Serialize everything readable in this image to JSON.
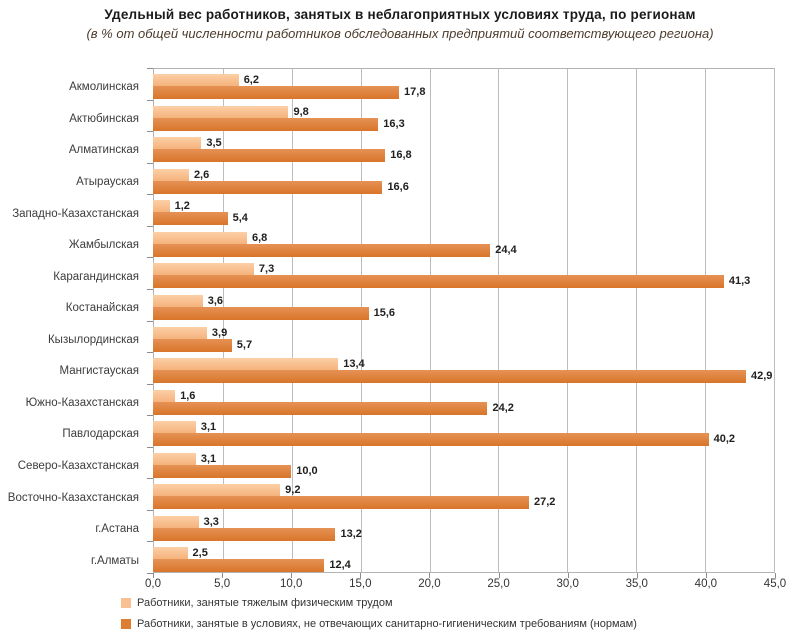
{
  "title": "Удельный вес работников, занятых в неблагоприятных условиях труда, по регионам",
  "subtitle": "(в % от общей численности работников обследованных предприятий соответствующего региона)",
  "colors": {
    "series_light": "#FBC091",
    "series_light_gradient_top": "#FCCFA6",
    "series_light_gradient_bottom": "#F5B27C",
    "series_dark": "#DD7E32",
    "series_dark_gradient_top": "#E69255",
    "series_dark_gradient_bottom": "#D9752A",
    "gridline": "#BDBDBD",
    "axis": "#8C8C8C",
    "value_label": "#21201E",
    "subtitle_text": "#4C3B2C"
  },
  "chart_data": {
    "type": "bar",
    "orientation": "horizontal",
    "categories": [
      "Акмолинская",
      "Актюбинская",
      "Алматинская",
      "Атырауская",
      "Западно-Казахстанская",
      "Жамбылская",
      "Карагандинская",
      "Костанайская",
      "Кызылординская",
      "Мангистауская",
      "Южно-Казахстанская",
      "Павлодарская",
      "Северо-Казахстанская",
      "Восточно-Казахстанская",
      "г.Астана",
      "г.Алматы"
    ],
    "series": [
      {
        "name": "Работники, занятые тяжелым физическим трудом",
        "color": "#FBC091",
        "values": [
          6.2,
          9.8,
          3.5,
          2.6,
          1.2,
          6.8,
          7.3,
          3.6,
          3.9,
          13.4,
          1.6,
          3.1,
          3.1,
          9.2,
          3.3,
          2.5
        ]
      },
      {
        "name": "Работники, занятые в условиях, не отвечающих санитарно-гигиеническим требованиям (нормам)",
        "color": "#DD7E32",
        "values": [
          17.8,
          16.3,
          16.8,
          16.6,
          5.4,
          24.4,
          41.3,
          15.6,
          5.7,
          42.9,
          24.2,
          40.2,
          10.0,
          27.2,
          13.2,
          12.4
        ]
      }
    ],
    "xlim": [
      0,
      45
    ],
    "x_tick_step": 5,
    "x_tick_labels": [
      "0,0",
      "5,0",
      "10,0",
      "15,0",
      "20,0",
      "25,0",
      "30,0",
      "35,0",
      "40,0",
      "45,0"
    ],
    "grid": true,
    "data_labels": true,
    "decimal_separator": ",",
    "legend_position": "bottom-left"
  }
}
